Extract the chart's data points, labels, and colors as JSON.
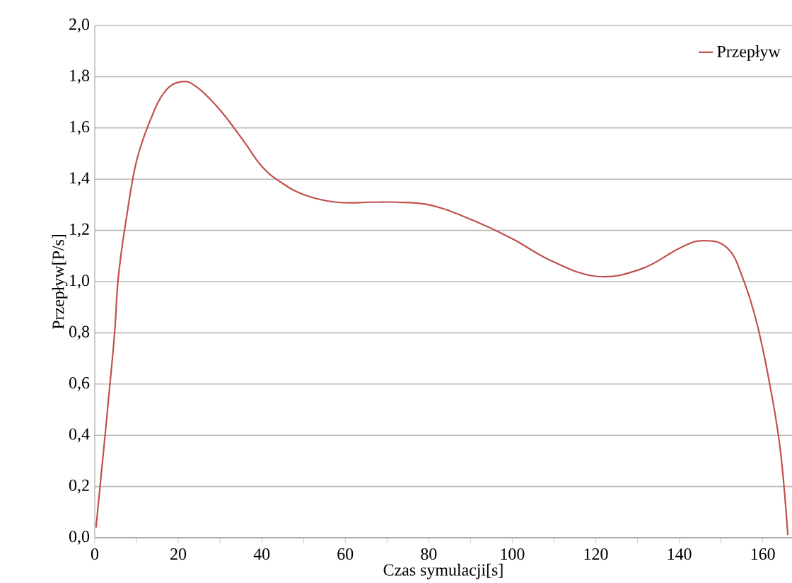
{
  "chart_data": {
    "type": "line",
    "xlabel": "Czas symulacji[s]",
    "ylabel": "Przepływ[P/s]",
    "xlim": [
      0,
      167
    ],
    "ylim": [
      0,
      2
    ],
    "xticks": [
      0,
      {
        "value": 10,
        "label": null
      },
      20,
      {
        "value": 30,
        "label": null
      },
      40,
      {
        "value": 50,
        "label": null
      },
      60,
      {
        "value": 70,
        "label": null
      },
      80,
      {
        "value": 90,
        "label": null
      },
      100,
      {
        "value": 110,
        "label": null
      },
      120,
      {
        "value": 130,
        "label": null
      },
      140,
      {
        "value": 150,
        "label": null
      },
      160
    ],
    "yticks": [
      {
        "value": 0,
        "label": "0,0"
      },
      {
        "value": 0.2,
        "label": "0,2"
      },
      {
        "value": 0.4,
        "label": "0,4"
      },
      {
        "value": 0.6,
        "label": "0,6"
      },
      {
        "value": 0.8,
        "label": "0,8"
      },
      {
        "value": 1.0,
        "label": "1,0"
      },
      {
        "value": 1.2,
        "label": "1,2"
      },
      {
        "value": 1.4,
        "label": "1,4"
      },
      {
        "value": 1.6,
        "label": "1,6"
      },
      {
        "value": 1.8,
        "label": "1,8"
      },
      {
        "value": 2.0,
        "label": "2,0"
      }
    ],
    "grid": "y",
    "legend": "top right",
    "marker": "none",
    "line_style": "solid",
    "series": [
      {
        "name": "Przepływ",
        "color": "#c0504d",
        "x": [
          0.3,
          4.4,
          5.6,
          7.6,
          10,
          13.3,
          16.7,
          20.6,
          24.4,
          30,
          35.6,
          40,
          44.4,
          50,
          57.8,
          66.7,
          72,
          80,
          89,
          99.7,
          109.5,
          120.4,
          131,
          140,
          145.7,
          151.6,
          155.3,
          158.7,
          162,
          164.3,
          166
        ],
        "values": [
          0.04,
          0.73,
          1.01,
          1.25,
          1.47,
          1.63,
          1.74,
          1.78,
          1.76,
          1.67,
          1.55,
          1.45,
          1.39,
          1.34,
          1.31,
          1.31,
          1.31,
          1.3,
          1.25,
          1.17,
          1.08,
          1.02,
          1.05,
          1.13,
          1.16,
          1.13,
          1.01,
          0.83,
          0.57,
          0.33,
          0.01
        ]
      }
    ]
  }
}
